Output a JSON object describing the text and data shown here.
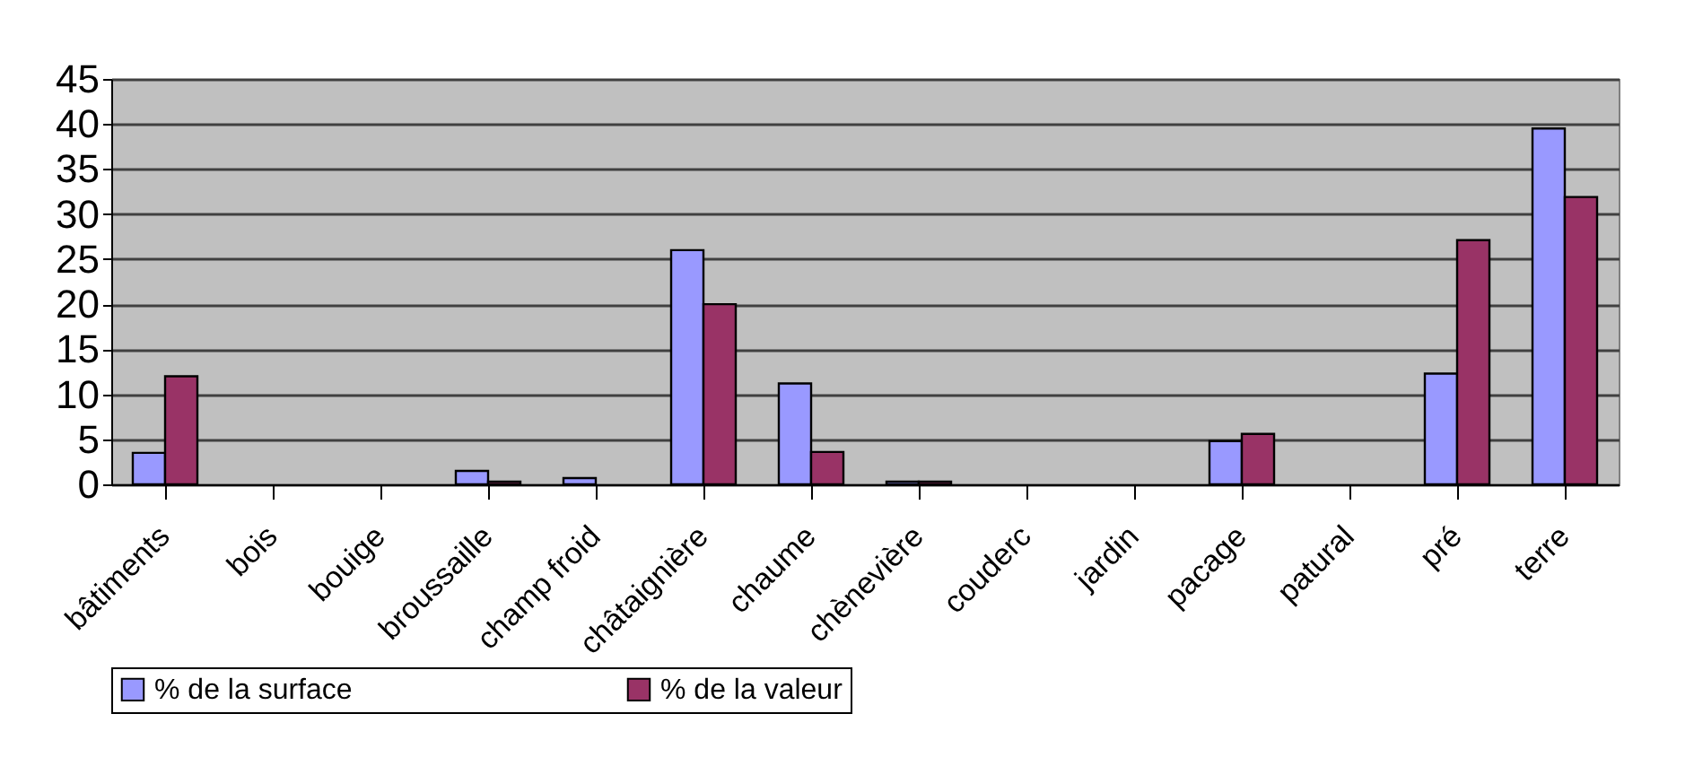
{
  "chart_data": {
    "type": "bar",
    "categories": [
      "bâtiments",
      "bois",
      "bouige",
      "broussaille",
      "champ froid",
      "châtaignière",
      "chaume",
      "chènevière",
      "couderc",
      "jardin",
      "pacage",
      "patural",
      "pré",
      "terre"
    ],
    "series": [
      {
        "name": "% de la surface",
        "color": "#9999ff",
        "values": [
          3.5,
          0,
          0,
          1.5,
          0.7,
          26,
          11.2,
          0.3,
          0,
          0,
          4.8,
          0,
          12.3,
          39.5
        ]
      },
      {
        "name": "% de la valeur",
        "color": "#993366",
        "values": [
          12,
          0,
          0,
          0.3,
          0,
          20,
          3.6,
          0.3,
          0,
          0,
          5.6,
          0,
          27.1,
          31.9
        ]
      }
    ],
    "ylim": [
      0,
      45
    ],
    "yticks": [
      0,
      5,
      10,
      15,
      20,
      25,
      30,
      35,
      40,
      45
    ],
    "grid": "y",
    "legend": "bottom"
  }
}
